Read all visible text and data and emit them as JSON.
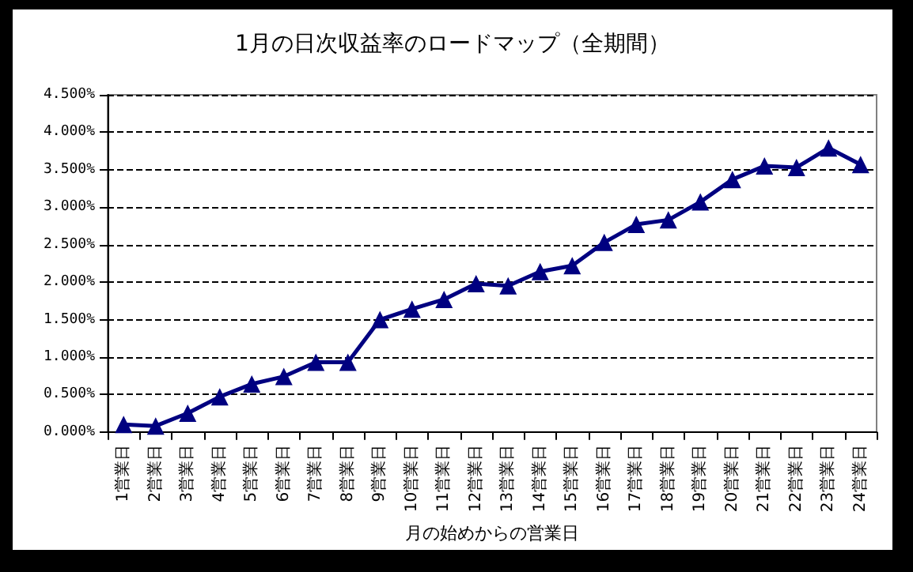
{
  "chart_data": {
    "type": "line",
    "title": "1月の日次収益率のロードマップ（全期間）",
    "xlabel": "月の始めからの営業日",
    "categories": [
      "1営業日",
      "2営業日",
      "3営業日",
      "4営業日",
      "5営業日",
      "6営業日",
      "7営業日",
      "8営業日",
      "9営業日",
      "10営業日",
      "11営業日",
      "12営業日",
      "13営業日",
      "14営業日",
      "15営業日",
      "16営業日",
      "17営業日",
      "18営業日",
      "19営業日",
      "20営業日",
      "21営業日",
      "22営業日",
      "23営業日",
      "24営業日"
    ],
    "series": [
      {
        "color": "#000080",
        "values": [
          0.1,
          0.08,
          0.25,
          0.47,
          0.64,
          0.74,
          0.93,
          0.93,
          1.5,
          1.64,
          1.77,
          1.98,
          1.95,
          2.14,
          2.22,
          2.53,
          2.77,
          2.83,
          3.07,
          3.37,
          3.55,
          3.53,
          3.79,
          3.57
        ]
      }
    ],
    "ylim": [
      0,
      4.5
    ],
    "yticks": [
      {
        "value": 0,
        "label": "0.000%"
      },
      {
        "value": 0.5,
        "label": "0.500%"
      },
      {
        "value": 1,
        "label": "1.000%"
      },
      {
        "value": 1.5,
        "label": "1.500%"
      },
      {
        "value": 2,
        "label": "2.000%"
      },
      {
        "value": 2.5,
        "label": "2.500%"
      },
      {
        "value": 3,
        "label": "3.000%"
      },
      {
        "value": 3.5,
        "label": "3.500%"
      },
      {
        "value": 4,
        "label": "4.000%"
      },
      {
        "value": 4.5,
        "label": "4.500%"
      }
    ],
    "grid": "y",
    "marker": "triangle",
    "line_style": "solid"
  }
}
